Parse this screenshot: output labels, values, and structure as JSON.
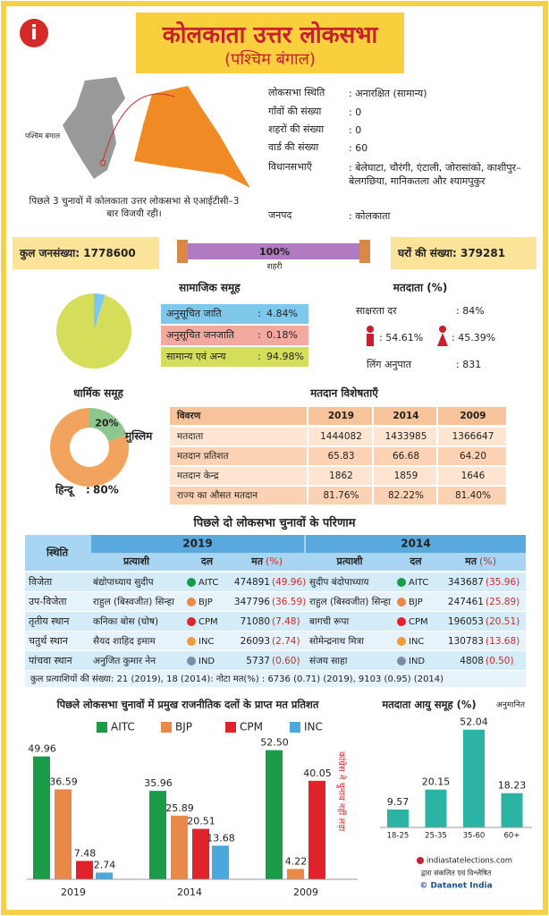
{
  "header": {
    "title": "कोलकाता उत्तर लोकसभा",
    "subtitle": "(पश्चिम बंगाल)"
  },
  "map": {
    "label": "पश्चिम बंगाल",
    "caption": "पिछले 3 चुनावों में कोलकाता उत्तर लोकसभा से एआईटीसी–3 बार विजयी रही।"
  },
  "info": [
    [
      "लोकसभा स्थिति",
      ": अनारक्षित (सामान्य)"
    ],
    [
      "गाँवों की संख्या",
      ": 0"
    ],
    [
      "शहरों की संख्या",
      ": 0"
    ],
    [
      "वार्ड की संख्या",
      ": 60"
    ],
    [
      "विधानसभाएँ",
      ": बेलेघाटा, चौरंगी, एंटाली, जोरासांको, काशीपुर–बेलगछिया, मानिकतला और श्यामपुकुर"
    ],
    [
      "जनपद",
      ": कोलकाता"
    ]
  ],
  "population": {
    "label": "कुल जनसंख्या:",
    "value": "1778600",
    "urban_value": "100%",
    "urban_label": "शहरी",
    "households_label": "घरों की संख्या:",
    "households_value": "379281"
  },
  "voters": {
    "title": "मतदाता (%)",
    "literacy_label": "साक्षरता दर",
    "literacy_value": ": 84%",
    "male": ": 54.61%",
    "female": ": 45.39%",
    "sex_ratio_label": "लिंग अनुपात",
    "sex_ratio_value": ": 831"
  },
  "polling": {
    "title": "मतदान विशेषताएँ",
    "header": [
      "विवरण",
      "2019",
      "2014",
      "2009"
    ],
    "rows": [
      [
        "मतदाता",
        "1444082",
        "1433985",
        "1366647"
      ],
      [
        "मतदान प्रतिशत",
        "65.83",
        "66.68",
        "64.20"
      ],
      [
        "मतदान केन्द्र",
        "1862",
        "1859",
        "1646"
      ],
      [
        "राज्य का औसत मतदान",
        "81.76%",
        "82.22%",
        "81.40%"
      ]
    ]
  },
  "results": {
    "title": "पिछले दो लोकसभा चुनावों के परिणाम",
    "status_header": "स्थिति",
    "years": [
      "2019",
      "2014"
    ],
    "columns": [
      "प्रत्याशी",
      "दल",
      "मत",
      "(%)"
    ],
    "rows": [
      [
        "विजेता",
        "बंद्योपाध्याय सुदीप",
        "AITC",
        "474891",
        "(49.96)",
        "सुदीप बंदोपाध्याय",
        "AITC",
        "343687",
        "(35.96)"
      ],
      [
        "उप-विजेता",
        "राहुल (बिस्वजीत) सिन्हा",
        "BJP",
        "347796",
        "(36.59)",
        "राहुल (बिस्वजीत) सिन्हा",
        "BJP",
        "247461",
        "(25.89)"
      ],
      [
        "तृतीय स्थान",
        "कनिका बोस (घोष)",
        "CPM",
        "71080",
        "(7.48)",
        "बागची रूपा",
        "CPM",
        "196053",
        "(20.51)"
      ],
      [
        "चतुर्थ स्थान",
        "सैयद शाहिद इमाम",
        "INC",
        "26093",
        "(2.74)",
        "सोमेन्द्रनाथ मित्रा",
        "INC",
        "130783",
        "(13.68)"
      ],
      [
        "पांचवा स्थान",
        "अनुजित कुमार नेन",
        "IND",
        "5737",
        "(0.60)",
        "संजय साहा",
        "IND",
        "4808",
        "(0.50)"
      ]
    ],
    "footer": "कुल प्रत्याशियों की संख्या: 21 (2019), 18 (2014): नोटा मत(%) : 6736 (0.71) (2019), 9103 (0.95) (2014)"
  },
  "credits": {
    "site": "indiastatelections.com",
    "compiled": "द्वारा संकलित एवं विश्लेषित",
    "copyright": "© Datanet India"
  },
  "chart_data": [
    {
      "type": "pie",
      "title": "सामाजिक समूह",
      "categories": [
        "अनुसूचित जाति",
        "अनुसूचित जनजाति",
        "सामान्य एवं अन्य"
      ],
      "values": [
        4.84,
        0.18,
        94.98
      ],
      "value_labels": [
        "4.84%",
        "0.18%",
        "94.98%"
      ],
      "colors": [
        "#7ec8ec",
        "#f4a9a0",
        "#d4de5a"
      ]
    },
    {
      "type": "donut",
      "title": "धार्मिक समूह",
      "categories": [
        "मुस्लिम",
        "हिन्दू"
      ],
      "values": [
        20,
        80
      ],
      "value_labels": [
        "20%",
        "80%"
      ],
      "colors": [
        "#8dc78f",
        "#f2a35e"
      ]
    },
    {
      "type": "bar",
      "title": "पिछले लोकसभा चुनावों में प्रमुख राजनीतिक दलों के प्राप्त मत प्रतिशत",
      "categories": [
        "2019",
        "2014",
        "2009"
      ],
      "series": [
        {
          "name": "AITC",
          "color": "#1a9b48",
          "values": [
            49.96,
            35.96,
            52.5
          ],
          "value_labels": [
            "49.96",
            "35.96",
            "52.50"
          ]
        },
        {
          "name": "BJP",
          "color": "#e8894a",
          "values": [
            36.59,
            25.89,
            4.22
          ]
        },
        {
          "name": "CPM",
          "color": "#e0232a",
          "values": [
            7.48,
            20.51,
            40.05
          ]
        },
        {
          "name": "INC",
          "color": "#4aa8dc",
          "values": [
            2.74,
            13.68,
            null
          ]
        }
      ],
      "annotation": "कांग्रेस ने चुनाव नहीं लड़ा"
    },
    {
      "type": "bar",
      "title": "मतदाता आयु समूह (%)",
      "note": "अनुमानित",
      "categories": [
        "18-25",
        "25-35",
        "35-60",
        "60+"
      ],
      "values": [
        9.57,
        20.15,
        52.04,
        18.23
      ],
      "color": "#2bb3a3"
    }
  ]
}
